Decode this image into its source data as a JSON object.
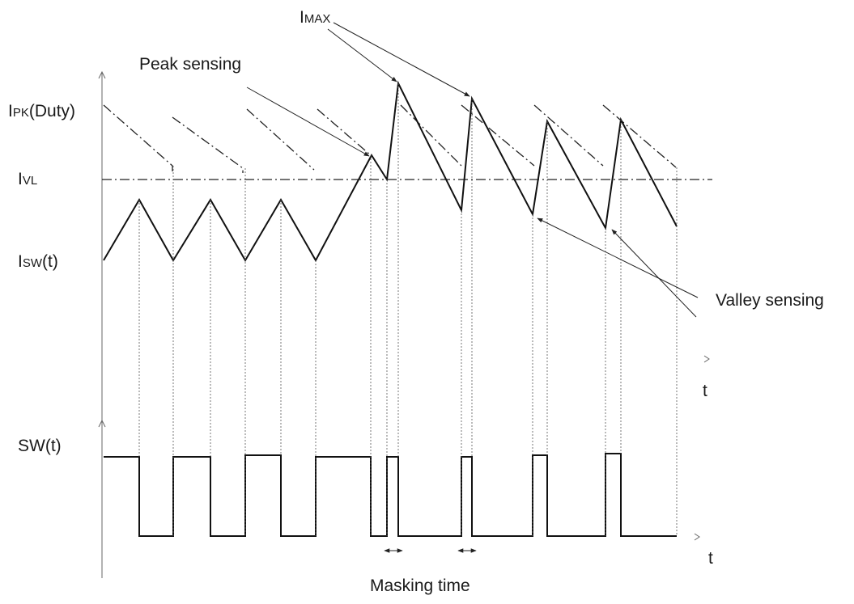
{
  "labels": {
    "imax": {
      "main": "I",
      "sub": "MAX"
    },
    "ipk": {
      "main": "I",
      "sub": "PK",
      "tail": "(Duty)"
    },
    "ivl": {
      "main": "I",
      "sub": "VL"
    },
    "isw": {
      "main": "I",
      "sub": "SW",
      "tail": "(t)"
    },
    "sw": "SW(t)",
    "t_upper": "t",
    "t_lower": "t",
    "peak_sensing": "Peak sensing",
    "valley_sensing": "Valley sensing",
    "masking_time": "Masking time"
  }
}
